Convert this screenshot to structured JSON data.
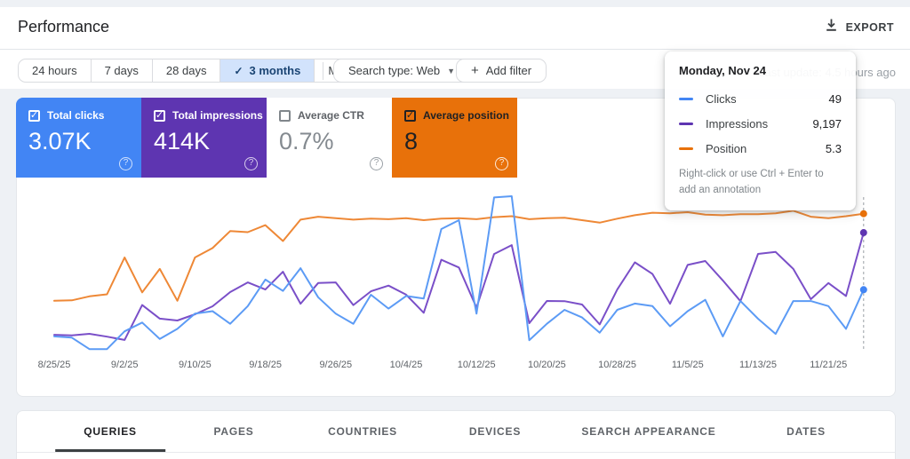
{
  "header": {
    "title": "Performance",
    "export_label": "EXPORT"
  },
  "filters": {
    "date_ranges": [
      {
        "label": "24 hours",
        "selected": false
      },
      {
        "label": "7 days",
        "selected": false
      },
      {
        "label": "28 days",
        "selected": false
      },
      {
        "label": "3 months",
        "selected": true
      },
      {
        "label": "More",
        "selected": false,
        "dropdown": true
      }
    ],
    "search_type_label": "Search type: Web",
    "add_filter_label": "Add filter",
    "last_update": "Last update: 4.5 hours ago"
  },
  "metrics": [
    {
      "label": "Total clicks",
      "value": "3.07K",
      "checked": true,
      "bg": "#4285f4",
      "fg": "#ffffff",
      "value_color": "#ffffff",
      "box_color": "#ffffff",
      "help_color": "rgba(255,255,255,0.75)"
    },
    {
      "label": "Total impressions",
      "value": "414K",
      "checked": true,
      "bg": "#5e35b1",
      "fg": "#ffffff",
      "value_color": "#ffffff",
      "box_color": "#ffffff",
      "help_color": "rgba(255,255,255,0.75)"
    },
    {
      "label": "Average CTR",
      "value": "0.7%",
      "checked": false,
      "bg": "#ffffff",
      "fg": "#5f6368",
      "value_color": "#848a90",
      "box_color": "#80868b",
      "help_color": "#9aa0a6"
    },
    {
      "label": "Average position",
      "value": "8",
      "checked": true,
      "bg": "#e8710a",
      "fg": "#202124",
      "value_color": "#202124",
      "box_color": "#202124",
      "help_color": "rgba(255,255,255,0.85)"
    }
  ],
  "tooltip": {
    "title": "Monday, Nov 24",
    "rows": [
      {
        "label": "Clicks",
        "value": "49",
        "color": "#4285f4"
      },
      {
        "label": "Impressions",
        "value": "9,197",
        "color": "#5e35b1"
      },
      {
        "label": "Position",
        "value": "5.3",
        "color": "#e8710a"
      }
    ],
    "footer": "Right-click or use Ctrl + Enter to add an annotation"
  },
  "chart_data": {
    "type": "line",
    "x_tick_labels": [
      "8/25/25",
      "9/2/25",
      "9/10/25",
      "9/18/25",
      "9/26/25",
      "10/4/25",
      "10/12/25",
      "10/20/25",
      "10/28/25",
      "11/5/25",
      "11/13/25",
      "11/21/25"
    ],
    "x_tick_indices": [
      0,
      4,
      8,
      12,
      16,
      20,
      24,
      28,
      32,
      36,
      40,
      44
    ],
    "hover_index": 46,
    "hover_date": "Monday, Nov 24",
    "series": [
      {
        "name": "Clicks",
        "color": "#5c9bf5",
        "dot_color": "#4285f4",
        "max": 130,
        "inverted": false,
        "values": [
          12,
          11,
          2,
          2,
          16,
          23,
          10,
          18,
          30,
          32,
          22,
          36,
          57,
          48,
          66,
          43,
          30,
          22,
          45,
          34,
          44,
          42,
          97,
          104,
          30,
          122,
          123,
          9,
          22,
          33,
          27,
          15,
          33,
          38,
          36,
          20,
          32,
          41,
          12,
          40,
          26,
          14,
          40,
          40,
          36,
          18,
          49
        ]
      },
      {
        "name": "Impressions",
        "color": "#7a4fc8",
        "dot_color": "#5e35b1",
        "max": 12700,
        "inverted": false,
        "values": [
          1300,
          1250,
          1370,
          1150,
          900,
          3600,
          2550,
          2400,
          2880,
          3500,
          4600,
          5350,
          4800,
          6170,
          3700,
          5300,
          5350,
          3600,
          4660,
          5100,
          4400,
          3000,
          7100,
          6500,
          3400,
          7545,
          8230,
          2200,
          3910,
          3900,
          3640,
          2100,
          4800,
          6900,
          6000,
          3700,
          6700,
          7000,
          5500,
          3900,
          7550,
          7700,
          6400,
          4050,
          5300,
          4300,
          9197
        ]
      },
      {
        "name": "Position",
        "color": "#ee8836",
        "dot_color": "#e8710a",
        "max": 33,
        "inverted": true,
        "values": [
          22.8,
          22.7,
          21.9,
          21.5,
          14.1,
          21.1,
          16.4,
          22.8,
          14.1,
          12.2,
          8.8,
          9.0,
          7.6,
          10.8,
          6.5,
          5.9,
          6.2,
          6.5,
          6.3,
          6.4,
          6.2,
          6.6,
          6.3,
          6.2,
          6.4,
          6.0,
          5.8,
          6.4,
          6.2,
          6.1,
          6.6,
          7.1,
          6.3,
          5.6,
          5.1,
          5.2,
          5.0,
          5.5,
          5.6,
          5.4,
          5.4,
          5.2,
          4.7,
          5.9,
          6.2,
          5.8,
          5.3
        ]
      }
    ],
    "title": "",
    "xlabel": "",
    "ylabel": "",
    "grid": false,
    "legend_position": "tooltip"
  },
  "tabs": [
    {
      "label": "QUERIES",
      "active": true
    },
    {
      "label": "PAGES",
      "active": false
    },
    {
      "label": "COUNTRIES",
      "active": false
    },
    {
      "label": "DEVICES",
      "active": false
    },
    {
      "label": "SEARCH APPEARANCE",
      "active": false
    },
    {
      "label": "DATES",
      "active": false
    }
  ]
}
